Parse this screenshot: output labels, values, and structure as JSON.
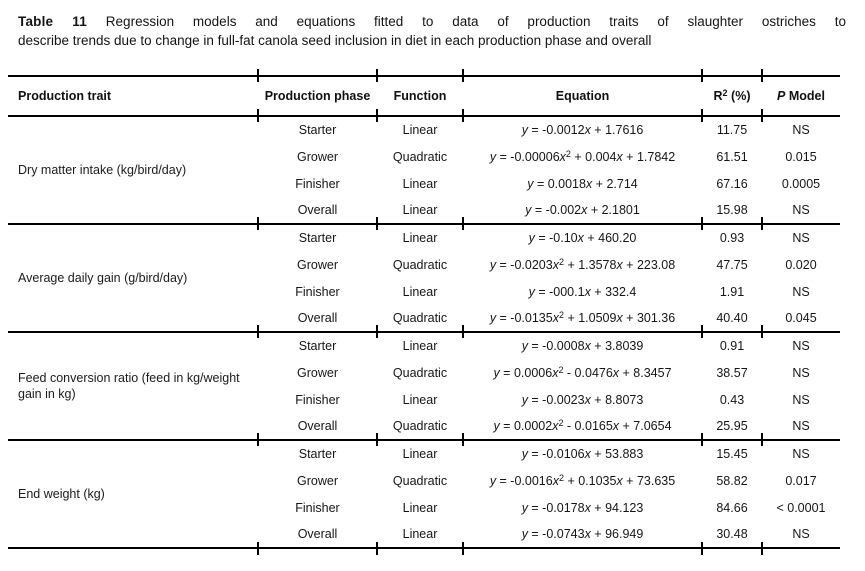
{
  "caption": {
    "bold": "Table 11",
    "line1_rest": " Regression models and equations fitted to data of production traits of slaughter ostriches to",
    "line2": "describe trends due to change in full-fat canola seed inclusion in diet in each production phase and overall"
  },
  "table": {
    "columns": {
      "trait": "Production trait",
      "phase": "Production phase",
      "function": "Function",
      "equation": "Equation",
      "r2_base": "R",
      "r2_sup": "2",
      "r2_unit": " (%)",
      "p_italic": "P",
      "p_rest": " Model"
    },
    "sections": [
      {
        "trait": "Dry matter intake (kg/bird/day)",
        "rows": [
          {
            "phase": "Starter",
            "function": "Linear",
            "equation": "y = -0.0012x + 1.7616",
            "r2": "11.75",
            "p_model": "NS"
          },
          {
            "phase": "Grower",
            "function": "Quadratic",
            "equation": "y = -0.00006x^2 + 0.004x + 1.7842",
            "r2": "61.51",
            "p_model": "0.015"
          },
          {
            "phase": "Finisher",
            "function": "Linear",
            "equation": "y = 0.0018x + 2.714",
            "r2": "67.16",
            "p_model": "0.0005"
          },
          {
            "phase": "Overall",
            "function": "Linear",
            "equation": "y = -0.002x + 2.1801",
            "r2": "15.98",
            "p_model": "NS"
          }
        ]
      },
      {
        "trait": "Average daily gain (g/bird/day)",
        "rows": [
          {
            "phase": "Starter",
            "function": "Linear",
            "equation": "y = -0.10x + 460.20",
            "r2": "0.93",
            "p_model": "NS"
          },
          {
            "phase": "Grower",
            "function": "Quadratic",
            "equation": "y = -0.0203x^2 + 1.3578x + 223.08",
            "r2": "47.75",
            "p_model": "0.020"
          },
          {
            "phase": "Finisher",
            "function": "Linear",
            "equation": "y = -000.1x + 332.4",
            "r2": "1.91",
            "p_model": "NS"
          },
          {
            "phase": "Overall",
            "function": "Quadratic",
            "equation": "y = -0.0135x^2 + 1.0509x + 301.36",
            "r2": "40.40",
            "p_model": "0.045"
          }
        ]
      },
      {
        "trait": "Feed conversion ratio (feed in kg/weight gain in kg)",
        "rows": [
          {
            "phase": "Starter",
            "function": "Linear",
            "equation": "y = -0.0008x + 3.8039",
            "r2": "0.91",
            "p_model": "NS"
          },
          {
            "phase": "Grower",
            "function": "Quadratic",
            "equation": "y = 0.0006x^2 - 0.0476x + 8.3457",
            "r2": "38.57",
            "p_model": "NS"
          },
          {
            "phase": "Finisher",
            "function": "Linear",
            "equation": "y = -0.0023x + 8.8073",
            "r2": "0.43",
            "p_model": "NS"
          },
          {
            "phase": "Overall",
            "function": "Quadratic",
            "equation": "y = 0.0002x^2 - 0.0165x + 7.0654",
            "r2": "25.95",
            "p_model": "NS"
          }
        ]
      },
      {
        "trait": "End weight (kg)",
        "rows": [
          {
            "phase": "Starter",
            "function": "Linear",
            "equation": "y = -0.0106x + 53.883",
            "r2": "15.45",
            "p_model": "NS"
          },
          {
            "phase": "Grower",
            "function": "Quadratic",
            "equation": "y = -0.0016x^2 + 0.1035x + 73.635",
            "r2": "58.82",
            "p_model": "0.017"
          },
          {
            "phase": "Finisher",
            "function": "Linear",
            "equation": "y = -0.0178x + 94.123",
            "r2": "84.66",
            "p_model": "< 0.0001"
          },
          {
            "phase": "Overall",
            "function": "Linear",
            "equation": "y = -0.0743x + 96.949",
            "r2": "30.48",
            "p_model": "NS"
          }
        ]
      }
    ]
  }
}
